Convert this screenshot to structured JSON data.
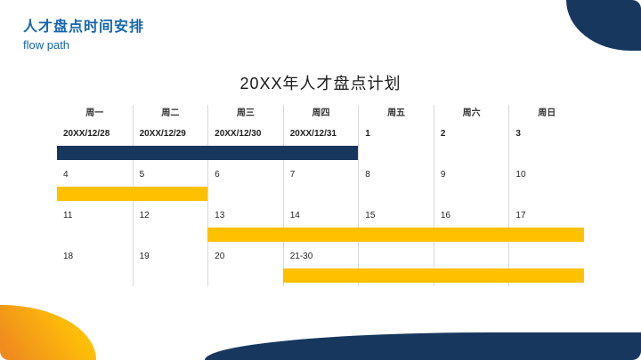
{
  "header": {
    "title": "人才盘点时间安排",
    "subtitle": "flow path"
  },
  "main": {
    "title": "20XX年人才盘点计划"
  },
  "calendar": {
    "weekdays": [
      "周一",
      "周二",
      "周三",
      "周四",
      "周五",
      "周六",
      "周日"
    ],
    "weeks": [
      {
        "dates": [
          "20XX/12/28",
          "20XX/12/29",
          "20XX/12/30",
          "20XX/12/31",
          "1",
          "2",
          "3"
        ],
        "bold": true,
        "bar": {
          "start": 0,
          "span": 4,
          "color": "#17375e"
        }
      },
      {
        "dates": [
          "4",
          "5",
          "6",
          "7",
          "8",
          "9",
          "10"
        ],
        "bold": false,
        "bar": {
          "start": 0,
          "span": 2,
          "color": "#ffc000"
        }
      },
      {
        "dates": [
          "11",
          "12",
          "13",
          "14",
          "15",
          "16",
          "17"
        ],
        "bold": false,
        "bar": {
          "start": 2,
          "span": 5,
          "color": "#ffc000"
        }
      },
      {
        "dates": [
          "18",
          "19",
          "20",
          "21-30",
          "",
          "",
          ""
        ],
        "bold": false,
        "bar": {
          "start": 3,
          "span": 4,
          "color": "#ffc000"
        }
      }
    ]
  },
  "colors": {
    "navy": "#17375e",
    "yellow": "#ffc000",
    "orange": "#ef8c1e",
    "accent_blue": "#1565b0"
  }
}
